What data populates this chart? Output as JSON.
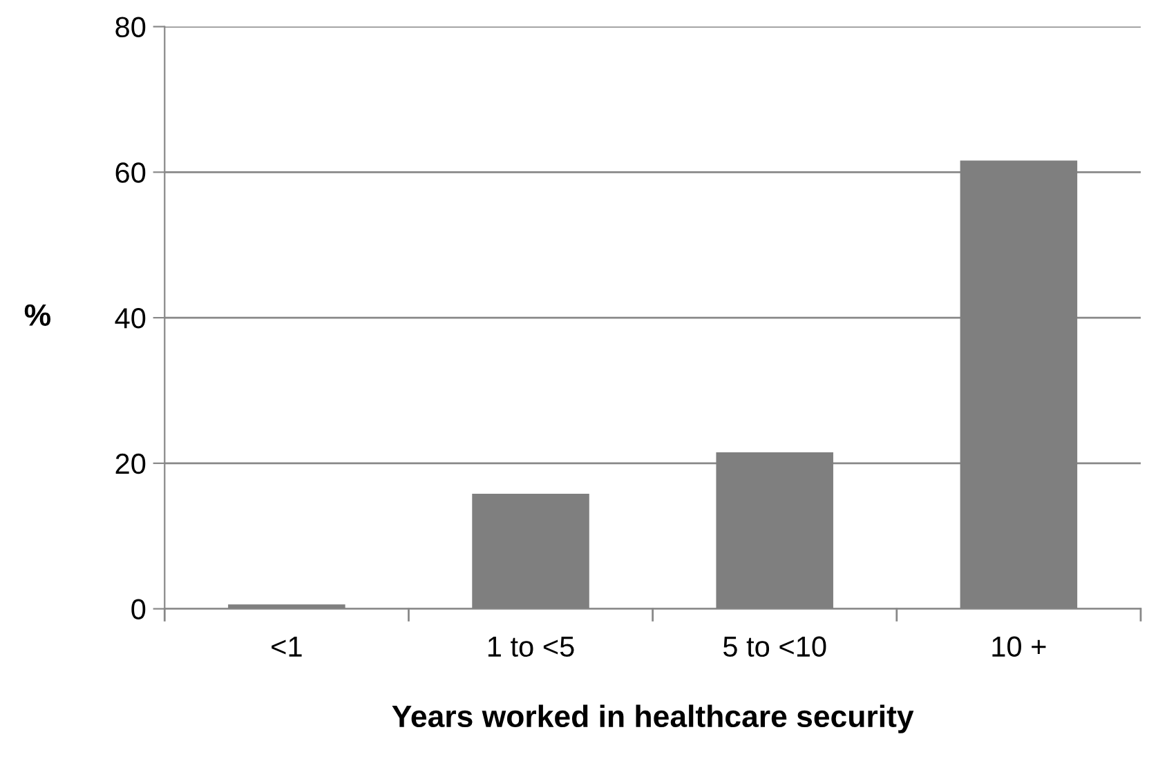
{
  "chart_data": {
    "type": "bar",
    "xlabel": "Years worked in healthcare security",
    "ylabel": "%",
    "categories": [
      "<1",
      "1 to <5",
      "5 to <10",
      "10 +"
    ],
    "values": [
      0.6,
      15.8,
      21.5,
      61.6
    ],
    "color": "#7f7f7f",
    "ylim": [
      0,
      80
    ],
    "yticks": [
      0,
      20,
      40,
      60,
      80
    ],
    "grid": "y"
  }
}
